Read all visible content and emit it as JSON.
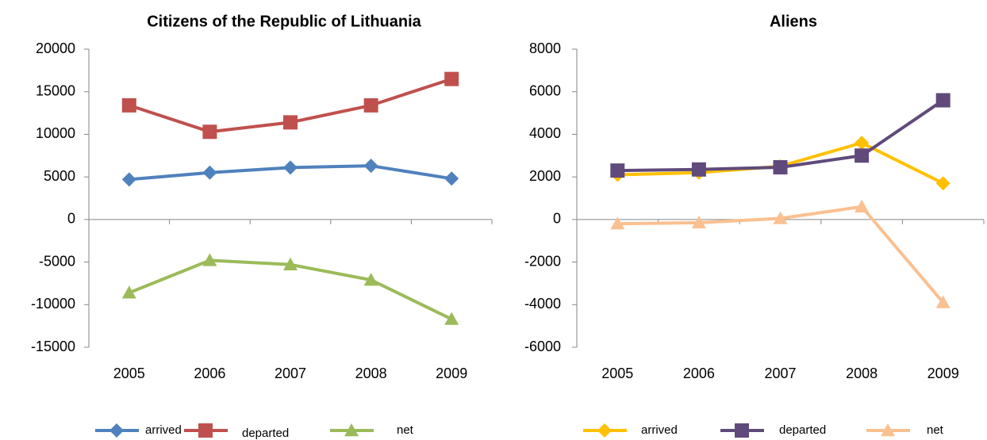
{
  "chart_data": [
    {
      "type": "line",
      "title": "Citizens of the Republic of Lithuania",
      "categories": [
        "2005",
        "2006",
        "2007",
        "2008",
        "2009"
      ],
      "ylim": [
        -15000,
        20000
      ],
      "yticks": [
        -15000,
        -10000,
        -5000,
        0,
        5000,
        10000,
        15000,
        20000
      ],
      "series": [
        {
          "name": "arrived",
          "color": "#4f81bd",
          "marker": "diamond",
          "values": [
            4700,
            5500,
            6100,
            6300,
            4800
          ]
        },
        {
          "name": "departed",
          "color": "#c0504d",
          "marker": "square",
          "values": [
            13400,
            10300,
            11400,
            13400,
            16500
          ]
        },
        {
          "name": "net",
          "color": "#9bbb59",
          "marker": "triangle",
          "values": [
            -8600,
            -4800,
            -5300,
            -7100,
            -11700
          ]
        }
      ],
      "legend": "bottom"
    },
    {
      "type": "line",
      "title": "Aliens",
      "categories": [
        "2005",
        "2006",
        "2007",
        "2008",
        "2009"
      ],
      "ylim": [
        -6000,
        8000
      ],
      "yticks": [
        -6000,
        -4000,
        -2000,
        0,
        2000,
        4000,
        6000,
        8000
      ],
      "series": [
        {
          "name": "arrived",
          "color": "#ffc000",
          "marker": "diamond",
          "values": [
            2100,
            2200,
            2500,
            3600,
            1700
          ]
        },
        {
          "name": "departed",
          "color": "#604a7b",
          "marker": "square",
          "values": [
            2300,
            2350,
            2450,
            3000,
            5600
          ]
        },
        {
          "name": "net",
          "color": "#fac090",
          "marker": "triangle",
          "values": [
            -200,
            -150,
            50,
            600,
            -3900
          ]
        }
      ],
      "legend": "bottom"
    }
  ]
}
